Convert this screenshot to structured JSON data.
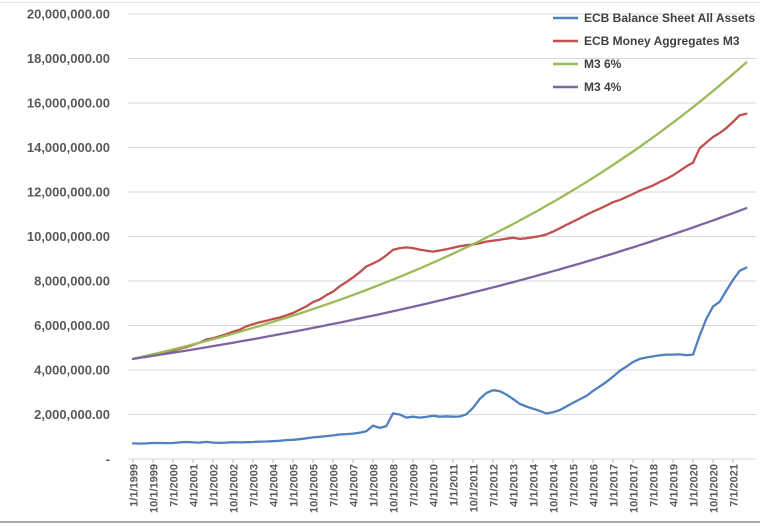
{
  "chart_data": {
    "type": "line",
    "title": "",
    "xlabel": "",
    "ylabel": "",
    "ylim": [
      0,
      20000000
    ],
    "y_tick_step": 2000000,
    "grid": "horizontal",
    "grid_color": "#d9d9d9",
    "axis_label_color": "#595959",
    "legend_text_color": "#404040",
    "legend_position": "top-right",
    "x_start_date": "1/1/1999",
    "x_point_step_months": 3,
    "x_tick_every_points": 3,
    "y_tick_labels": [
      "20,000,000.00",
      "18,000,000.00",
      "16,000,000.00",
      "14,000,000.00",
      "12,000,000.00",
      "10,000,000.00",
      "8,000,000.00",
      "6,000,000.00",
      "4,000,000.00",
      "2,000,000.00",
      "-"
    ],
    "x_tick_labels": [
      "1/1/1999",
      "10/1/1999",
      "7/1/2000",
      "4/1/2001",
      "1/1/2002",
      "10/1/2002",
      "7/1/2003",
      "4/1/2004",
      "1/1/2005",
      "10/1/2005",
      "7/1/2006",
      "4/1/2007",
      "1/1/2008",
      "10/1/2008",
      "7/1/2009",
      "4/1/2010",
      "1/1/2011",
      "10/1/2011",
      "7/1/2012",
      "4/1/2013",
      "1/1/2014",
      "10/1/2014",
      "7/1/2015",
      "4/1/2016",
      "1/1/2017",
      "10/1/2017",
      "7/1/2018",
      "4/1/2019",
      "1/1/2020",
      "10/1/2020",
      "7/1/2021"
    ],
    "series": [
      {
        "name": "ECB Balance Sheet All Assets",
        "color": "#4F81BD",
        "values": [
          700000,
          690000,
          700000,
          720000,
          720000,
          715000,
          720000,
          745000,
          765000,
          745000,
          735000,
          770000,
          735000,
          725000,
          735000,
          755000,
          745000,
          755000,
          765000,
          780000,
          785000,
          800000,
          820000,
          850000,
          865000,
          890000,
          930000,
          970000,
          1000000,
          1030000,
          1060000,
          1100000,
          1120000,
          1140000,
          1180000,
          1250000,
          1500000,
          1400000,
          1480000,
          2050000,
          2000000,
          1860000,
          1900000,
          1860000,
          1890000,
          1940000,
          1900000,
          1920000,
          1900000,
          1910000,
          2010000,
          2300000,
          2700000,
          2960000,
          3090000,
          3050000,
          2900000,
          2700000,
          2480000,
          2360000,
          2260000,
          2160000,
          2050000,
          2100000,
          2200000,
          2360000,
          2520000,
          2680000,
          2830000,
          3060000,
          3260000,
          3460000,
          3700000,
          3960000,
          4150000,
          4360000,
          4500000,
          4560000,
          4610000,
          4660000,
          4690000,
          4690000,
          4700000,
          4670000,
          4690000,
          5550000,
          6300000,
          6850000,
          7070000,
          7570000,
          8050000,
          8460000,
          8600000
        ]
      },
      {
        "name": "ECB Money Aggregates M3",
        "color": "#C0504D",
        "values": [
          4500000,
          4560000,
          4620000,
          4700000,
          4760000,
          4810000,
          4870000,
          4960000,
          5030000,
          5130000,
          5230000,
          5370000,
          5430000,
          5520000,
          5610000,
          5720000,
          5810000,
          5960000,
          6060000,
          6150000,
          6210000,
          6290000,
          6360000,
          6460000,
          6560000,
          6710000,
          6860000,
          7050000,
          7170000,
          7360000,
          7520000,
          7760000,
          7950000,
          8160000,
          8390000,
          8650000,
          8790000,
          8940000,
          9150000,
          9400000,
          9480000,
          9510000,
          9480000,
          9410000,
          9360000,
          9320000,
          9370000,
          9430000,
          9490000,
          9560000,
          9610000,
          9640000,
          9700000,
          9770000,
          9810000,
          9850000,
          9900000,
          9940000,
          9890000,
          9920000,
          9970000,
          10020000,
          10090000,
          10220000,
          10370000,
          10520000,
          10670000,
          10820000,
          10970000,
          11120000,
          11250000,
          11390000,
          11540000,
          11640000,
          11770000,
          11910000,
          12060000,
          12170000,
          12290000,
          12450000,
          12590000,
          12750000,
          12950000,
          13150000,
          13320000,
          13970000,
          14220000,
          14470000,
          14650000,
          14870000,
          15150000,
          15450000,
          15520000
        ]
      },
      {
        "name": "M3 6%",
        "color": "#9BBB59",
        "values": [
          4500000,
          4568000,
          4637000,
          4707000,
          4777000,
          4849000,
          4923000,
          4997000,
          5072000,
          5149000,
          5226000,
          5305000,
          5385000,
          5466000,
          5548000,
          5632000,
          5717000,
          5803000,
          5891000,
          5979000,
          6070000,
          6161000,
          6254000,
          6348000,
          6444000,
          6541000,
          6640000,
          6740000,
          6841000,
          6944000,
          7049000,
          7155000,
          7263000,
          7373000,
          7484000,
          7597000,
          7711000,
          7827000,
          7945000,
          8065000,
          8187000,
          8310000,
          8435000,
          8563000,
          8692000,
          8823000,
          8956000,
          9091000,
          9228000,
          9367000,
          9508000,
          9651000,
          9797000,
          9944000,
          10094000,
          10247000,
          10401000,
          10558000,
          10717000,
          10879000,
          11043000,
          11209000,
          11378000,
          11549000,
          11724000,
          11900000,
          12080000,
          12262000,
          12447000,
          12634000,
          12825000,
          13018000,
          13214000,
          13414000,
          13616000,
          13821000,
          14029000,
          14241000,
          14456000,
          14673000,
          14895000,
          15119000,
          15347000,
          15578000,
          15813000,
          16052000,
          16294000,
          16539000,
          16789000,
          17042000,
          17299000,
          17559000,
          17824000
        ]
      },
      {
        "name": "M3 4%",
        "color": "#8064A2",
        "values": [
          4500000,
          4545000,
          4591000,
          4637000,
          4683000,
          4730000,
          4778000,
          4826000,
          4874000,
          4923000,
          4972000,
          5022000,
          5072000,
          5123000,
          5175000,
          5227000,
          5279000,
          5332000,
          5386000,
          5440000,
          5494000,
          5549000,
          5605000,
          5661000,
          5718000,
          5775000,
          5833000,
          5892000,
          5951000,
          6010000,
          6071000,
          6132000,
          6193000,
          6255000,
          6318000,
          6381000,
          6446000,
          6510000,
          6575000,
          6641000,
          6708000,
          6775000,
          6843000,
          6912000,
          6981000,
          7051000,
          7122000,
          7193000,
          7266000,
          7338000,
          7412000,
          7486000,
          7561000,
          7637000,
          7714000,
          7791000,
          7869000,
          7948000,
          8028000,
          8109000,
          8190000,
          8272000,
          8355000,
          8439000,
          8523000,
          8609000,
          8695000,
          8783000,
          8871000,
          8960000,
          9049000,
          9140000,
          9232000,
          9324000,
          9418000,
          9512000,
          9608000,
          9704000,
          9802000,
          9900000,
          9999000,
          10099000,
          10201000,
          10303000,
          10406000,
          10511000,
          10616000,
          10723000,
          10830000,
          10939000,
          11048000,
          11159000,
          11271000
        ]
      }
    ]
  }
}
